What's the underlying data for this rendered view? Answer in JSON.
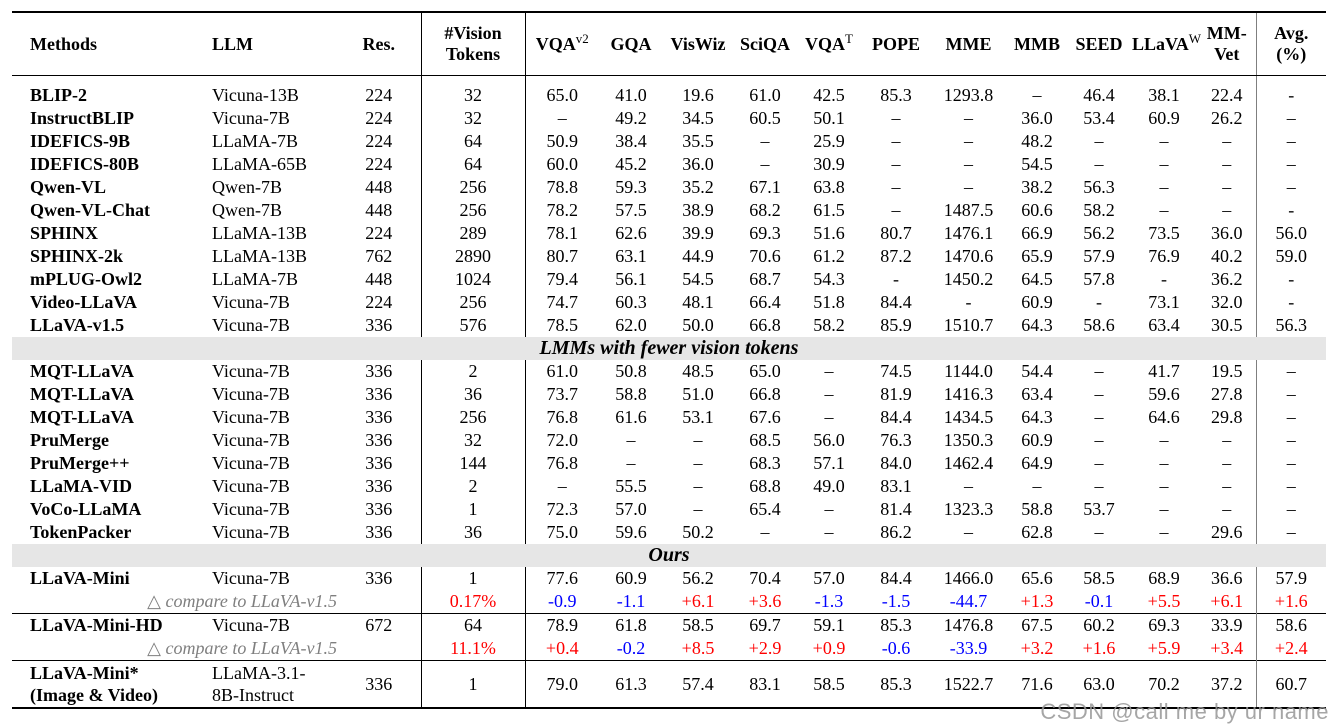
{
  "headers": {
    "methods": "Methods",
    "llm": "LLM",
    "res": "Res.",
    "vision_tokens_line1": "#Vision",
    "vision_tokens_line2": "Tokens",
    "vqav2": "VQA",
    "vqav2_sup": "v2",
    "gqa": "GQA",
    "viswiz": "VisWiz",
    "sciqa": "SciQA",
    "vqat": "VQA",
    "vqat_sup": "T",
    "pope": "POPE",
    "mme": "MME",
    "mmb": "MMB",
    "seed": "SEED",
    "llavaw": "LLaVA",
    "llavaw_sup": "W",
    "mmvet_line1": "MM-",
    "mmvet_line2": "Vet",
    "avg_line1": "Avg.",
    "avg_line2": "(%)"
  },
  "rows_a": [
    [
      "BLIP-2",
      "Vicuna-13B",
      "224",
      "32",
      "65.0",
      "41.0",
      "19.6",
      "61.0",
      "42.5",
      "85.3",
      "1293.8",
      "–",
      "46.4",
      "38.1",
      "22.4",
      "-"
    ],
    [
      "InstructBLIP",
      "Vicuna-7B",
      "224",
      "32",
      "–",
      "49.2",
      "34.5",
      "60.5",
      "50.1",
      "–",
      "–",
      "36.0",
      "53.4",
      "60.9",
      "26.2",
      "–"
    ],
    [
      "IDEFICS-9B",
      "LLaMA-7B",
      "224",
      "64",
      "50.9",
      "38.4",
      "35.5",
      "–",
      "25.9",
      "–",
      "–",
      "48.2",
      "–",
      "–",
      "–",
      "–"
    ],
    [
      "IDEFICS-80B",
      "LLaMA-65B",
      "224",
      "64",
      "60.0",
      "45.2",
      "36.0",
      "–",
      "30.9",
      "–",
      "–",
      "54.5",
      "–",
      "–",
      "–",
      "–"
    ],
    [
      "Qwen-VL",
      "Qwen-7B",
      "448",
      "256",
      "78.8",
      "59.3",
      "35.2",
      "67.1",
      "63.8",
      "–",
      "–",
      "38.2",
      "56.3",
      "–",
      "–",
      "–"
    ],
    [
      "Qwen-VL-Chat",
      "Qwen-7B",
      "448",
      "256",
      "78.2",
      "57.5",
      "38.9",
      "68.2",
      "61.5",
      "–",
      "1487.5",
      "60.6",
      "58.2",
      "–",
      "–",
      "-"
    ],
    [
      "SPHINX",
      "LLaMA-13B",
      "224",
      "289",
      "78.1",
      "62.6",
      "39.9",
      "69.3",
      "51.6",
      "80.7",
      "1476.1",
      "66.9",
      "56.2",
      "73.5",
      "36.0",
      "56.0"
    ],
    [
      "SPHINX-2k",
      "LLaMA-13B",
      "762",
      "2890",
      "80.7",
      "63.1",
      "44.9",
      "70.6",
      "61.2",
      "87.2",
      "1470.6",
      "65.9",
      "57.9",
      "76.9",
      "40.2",
      "59.0"
    ],
    [
      "mPLUG-Owl2",
      "LLaMA-7B",
      "448",
      "1024",
      "79.4",
      "56.1",
      "54.5",
      "68.7",
      "54.3",
      "-",
      "1450.2",
      "64.5",
      "57.8",
      "-",
      "36.2",
      "-"
    ],
    [
      "Video-LLaVA",
      "Vicuna-7B",
      "224",
      "256",
      "74.7",
      "60.3",
      "48.1",
      "66.4",
      "51.8",
      "84.4",
      "-",
      "60.9",
      "-",
      "73.1",
      "32.0",
      "-"
    ],
    [
      "LLaVA-v1.5",
      "Vicuna-7B",
      "336",
      "576",
      "78.5",
      "62.0",
      "50.0",
      "66.8",
      "58.2",
      "85.9",
      "1510.7",
      "64.3",
      "58.6",
      "63.4",
      "30.5",
      "56.3"
    ]
  ],
  "section_fewer": "LMMs with fewer vision tokens",
  "rows_b": [
    [
      "MQT-LLaVA",
      "Vicuna-7B",
      "336",
      "2",
      "61.0",
      "50.8",
      "48.5",
      "65.0",
      "–",
      "74.5",
      "1144.0",
      "54.4",
      "–",
      "41.7",
      "19.5",
      "–"
    ],
    [
      "MQT-LLaVA",
      "Vicuna-7B",
      "336",
      "36",
      "73.7",
      "58.8",
      "51.0",
      "66.8",
      "–",
      "81.9",
      "1416.3",
      "63.4",
      "–",
      "59.6",
      "27.8",
      "–"
    ],
    [
      "MQT-LLaVA",
      "Vicuna-7B",
      "336",
      "256",
      "76.8",
      "61.6",
      "53.1",
      "67.6",
      "–",
      "84.4",
      "1434.5",
      "64.3",
      "–",
      "64.6",
      "29.8",
      "–"
    ],
    [
      "PruMerge",
      "Vicuna-7B",
      "336",
      "32",
      "72.0",
      "–",
      "–",
      "68.5",
      "56.0",
      "76.3",
      "1350.3",
      "60.9",
      "–",
      "–",
      "–",
      "–"
    ],
    [
      "PruMerge++",
      "Vicuna-7B",
      "336",
      "144",
      "76.8",
      "–",
      "–",
      "68.3",
      "57.1",
      "84.0",
      "1462.4",
      "64.9",
      "–",
      "–",
      "–",
      "–"
    ],
    [
      "LLaMA-VID",
      "Vicuna-7B",
      "336",
      "2",
      "–",
      "55.5",
      "–",
      "68.8",
      "49.0",
      "83.1",
      "–",
      "–",
      "–",
      "–",
      "–",
      "–"
    ],
    [
      "VoCo-LLaMA",
      "Vicuna-7B",
      "336",
      "1",
      "72.3",
      "57.0",
      "–",
      "65.4",
      "–",
      "81.4",
      "1323.3",
      "58.8",
      "53.7",
      "–",
      "–",
      "–"
    ],
    [
      "TokenPacker",
      "Vicuna-7B",
      "336",
      "36",
      "75.0",
      "59.6",
      "50.2",
      "–",
      "–",
      "86.2",
      "–",
      "62.8",
      "–",
      "–",
      "29.6",
      "–"
    ]
  ],
  "section_ours": "Ours",
  "mini": {
    "row": [
      "LLaVA-Mini",
      "Vicuna-7B",
      "336",
      "1",
      "77.6",
      "60.9",
      "56.2",
      "70.4",
      "57.0",
      "84.4",
      "1466.0",
      "65.6",
      "58.5",
      "68.9",
      "36.6",
      "57.9"
    ],
    "cmp_label": "△ compare to LLaVA-v1.5",
    "cmp_pct": "0.17%",
    "cmp_vals": [
      "-0.9",
      "-1.1",
      "+6.1",
      "+3.6",
      "-1.3",
      "-1.5",
      "-44.7",
      "+1.3",
      "-0.1",
      "+5.5",
      "+6.1",
      "+1.6"
    ]
  },
  "mini_hd": {
    "row": [
      "LLaVA-Mini-HD",
      "Vicuna-7B",
      "672",
      "64",
      "78.9",
      "61.8",
      "58.5",
      "69.7",
      "59.1",
      "85.3",
      "1476.8",
      "67.5",
      "60.2",
      "69.3",
      "33.9",
      "58.6"
    ],
    "cmp_label": "△ compare to LLaVA-v1.5",
    "cmp_pct": "11.1%",
    "cmp_vals": [
      "+0.4",
      "-0.2",
      "+8.5",
      "+2.9",
      "+0.9",
      "-0.6",
      "-33.9",
      "+3.2",
      "+1.6",
      "+5.9",
      "+3.4",
      "+2.4"
    ]
  },
  "mini_star": {
    "method_line1": "LLaVA-Mini*",
    "method_line2": "(Image & Video)",
    "llm_line1": "LLaMA-3.1-",
    "llm_line2": "8B-Instruct",
    "vals": [
      "336",
      "1",
      "79.0",
      "61.3",
      "57.4",
      "83.1",
      "58.5",
      "85.3",
      "1522.7",
      "71.6",
      "63.0",
      "70.2",
      "37.2",
      "60.7"
    ]
  },
  "watermark": "CSDN @call me by ur name"
}
